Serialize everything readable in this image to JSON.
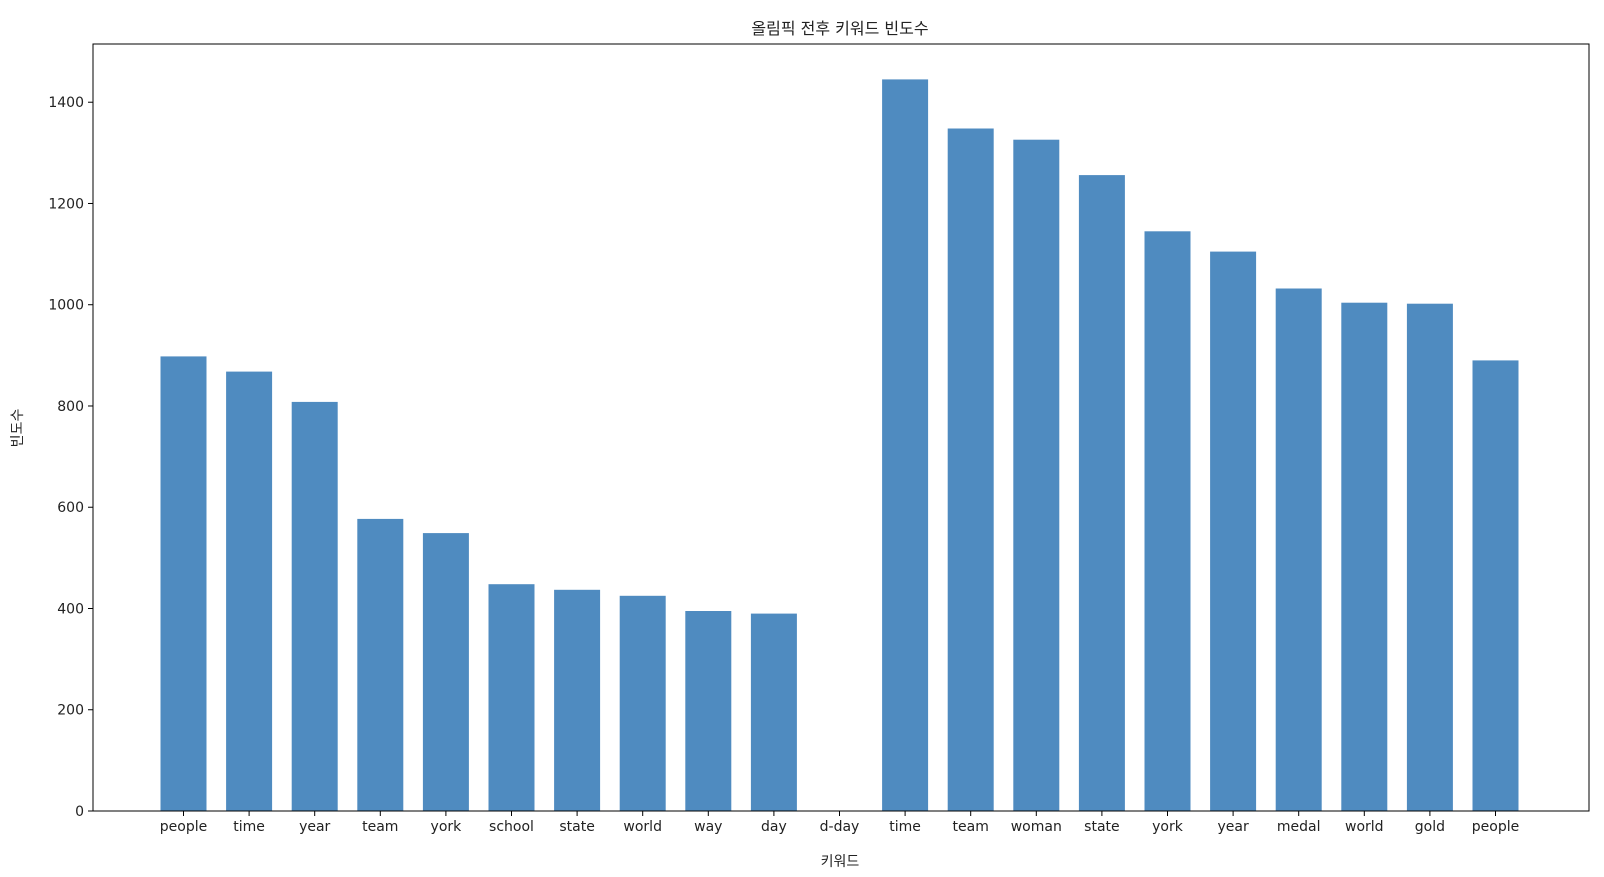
{
  "chart_data": {
    "type": "bar",
    "title": "올림픽 전후 키워드 빈도수",
    "xlabel": "키워드",
    "ylabel": "빈도수",
    "categories": [
      "people",
      "time",
      "year",
      "team",
      "york",
      "school",
      "state",
      "world",
      "way",
      "day",
      "d-day",
      "time",
      "team",
      "woman",
      "state",
      "york",
      "year",
      "medal",
      "world",
      "gold",
      "people"
    ],
    "values": [
      898,
      868,
      808,
      577,
      549,
      448,
      437,
      425,
      395,
      390,
      0,
      1445,
      1348,
      1326,
      1256,
      1145,
      1105,
      1032,
      1004,
      1002,
      890
    ],
    "ylim": [
      0,
      1515
    ],
    "yticks": [
      0,
      200,
      400,
      600,
      800,
      1000,
      1200,
      1400
    ],
    "grid": false,
    "legend": "none",
    "bar_color": "#4f8bc0"
  }
}
